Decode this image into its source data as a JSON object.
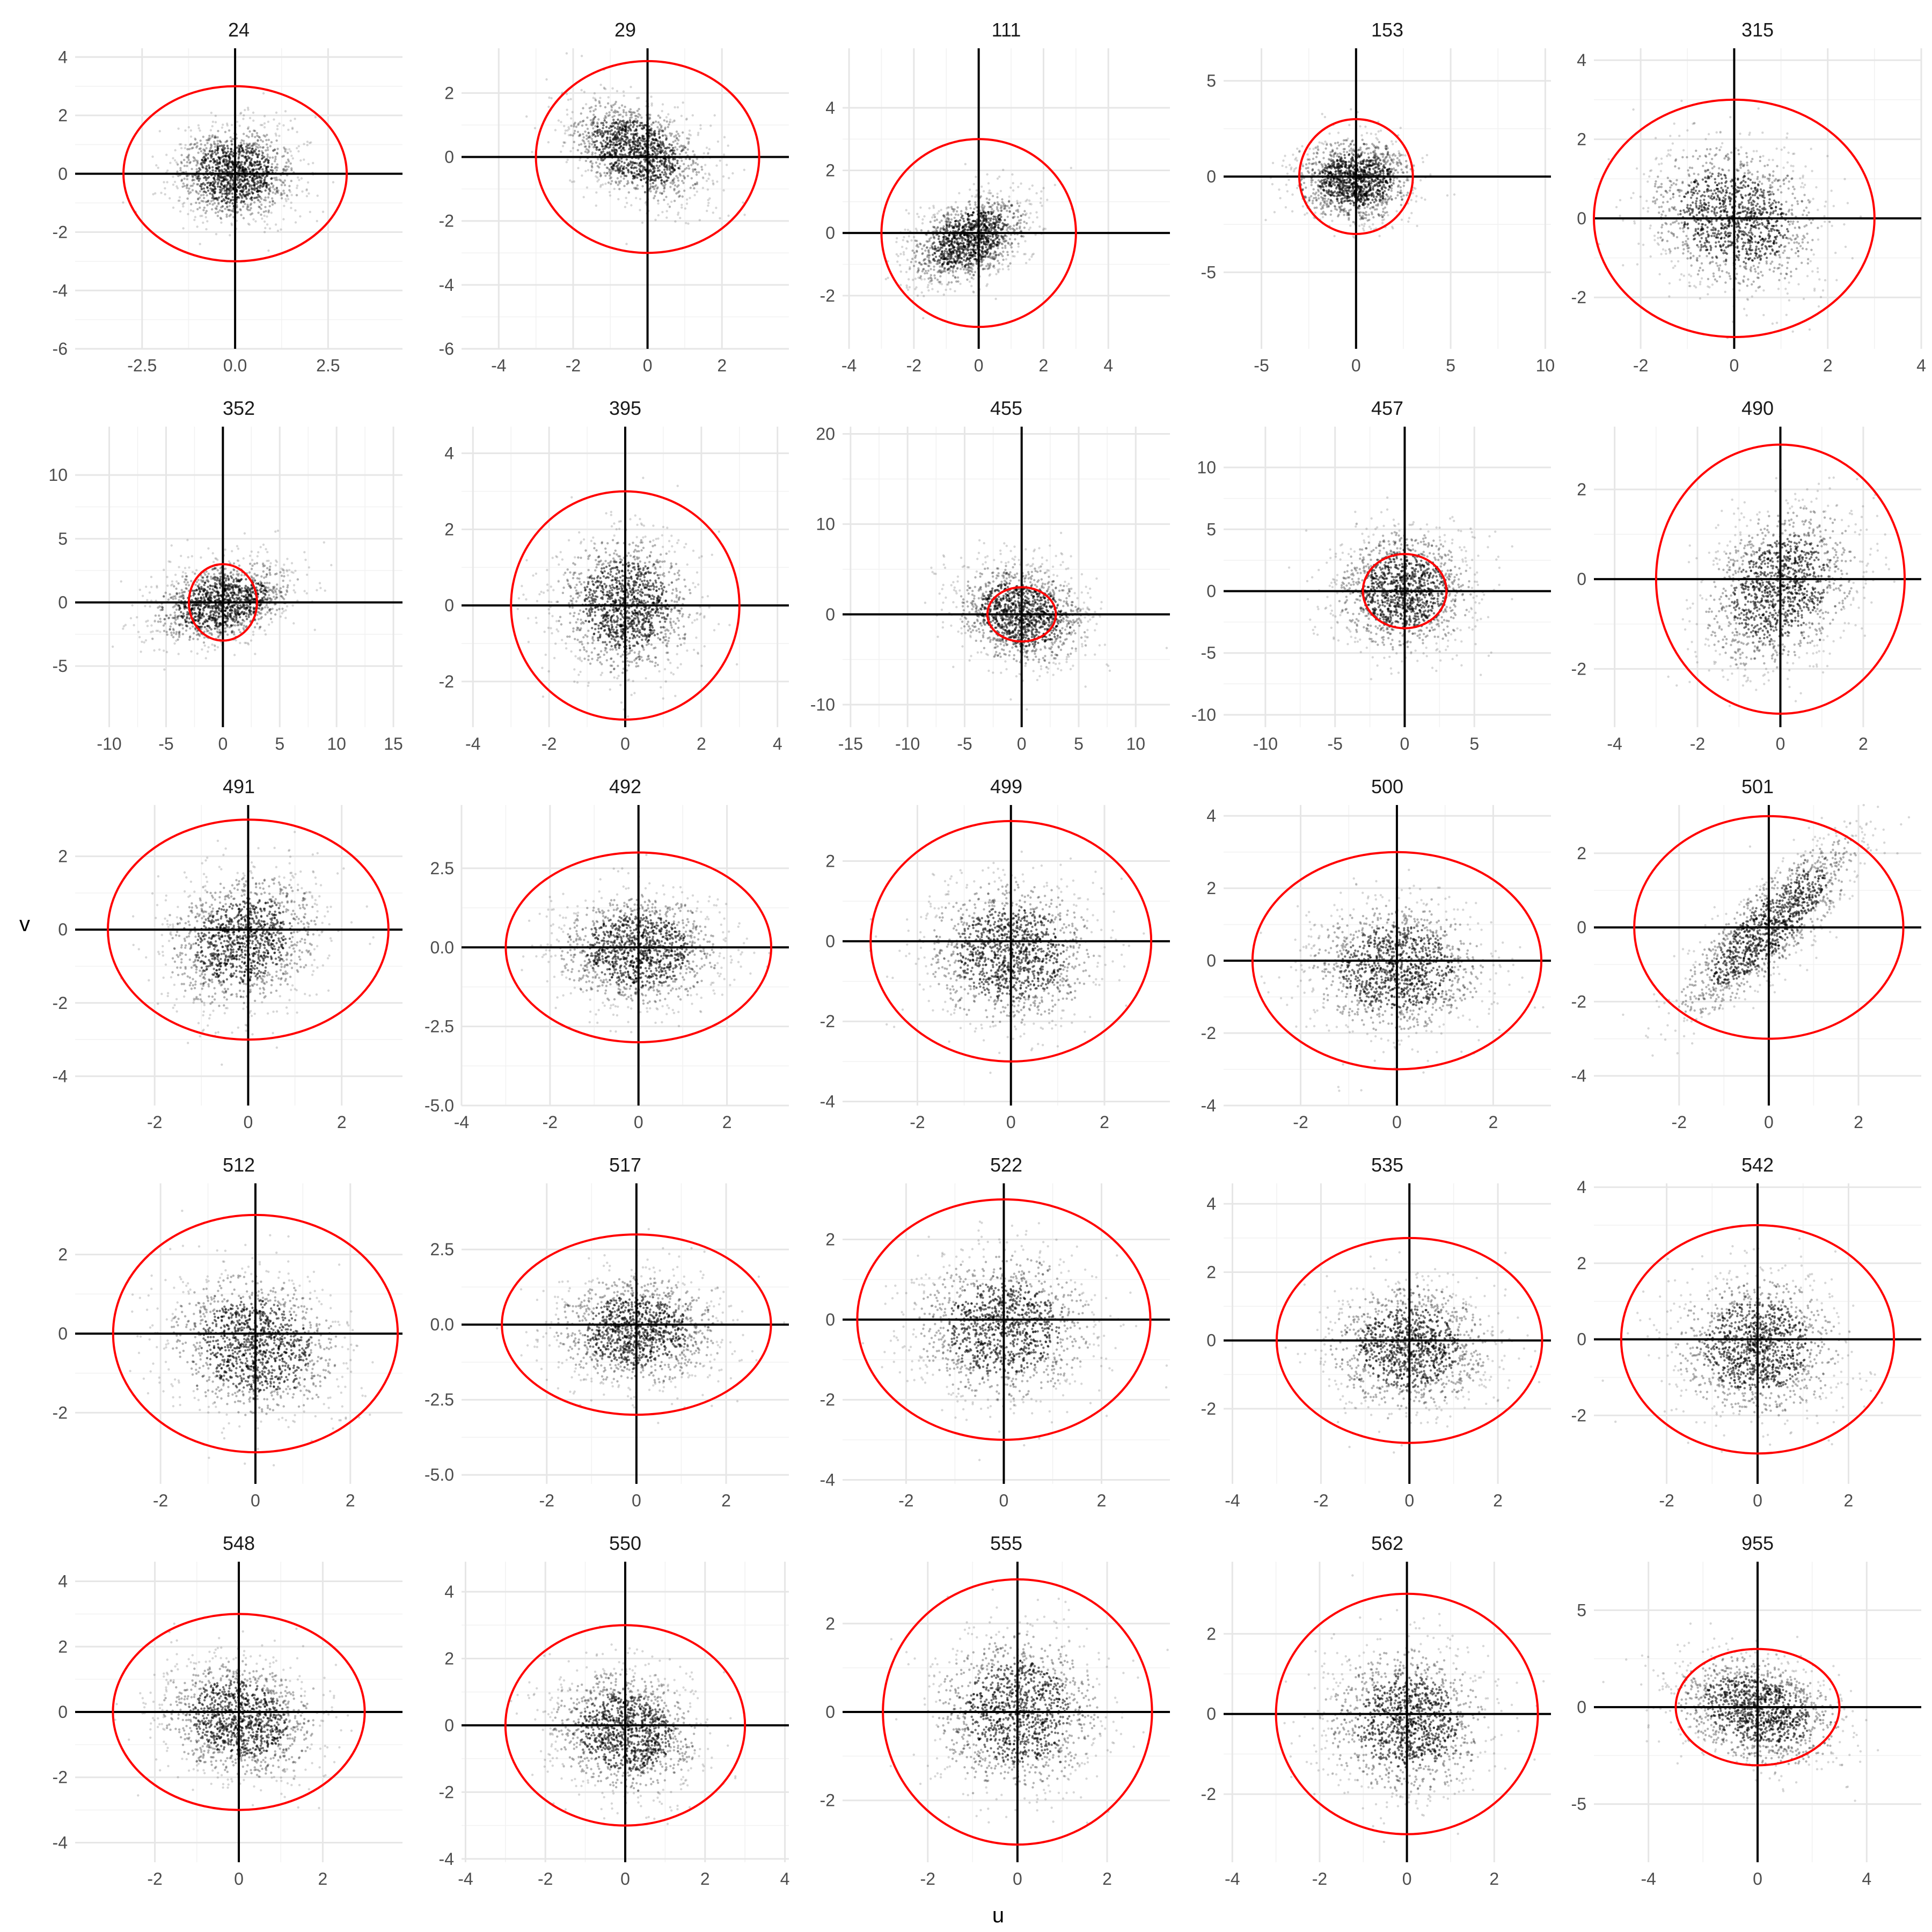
{
  "chart_data": {
    "type": "scatter",
    "xlabel": "u",
    "ylabel": "v",
    "grid": true,
    "reference_lines": {
      "x": 0,
      "y": 0
    },
    "reference_circle_radius": 3,
    "reference_circle_color": "#ff0000",
    "point_color": "#000000",
    "facets": [
      {
        "title": "24",
        "xlim": [
          -4.3,
          4.5
        ],
        "ylim": [
          -6.0,
          4.3
        ],
        "xticks": [
          "-2.5",
          "0.0",
          "2.5"
        ],
        "xtick_values": [
          -2.5,
          0,
          2.5
        ],
        "yticks": [
          "-6",
          "-4",
          "-2",
          "0",
          "2",
          "4"
        ],
        "ytick_values": [
          -6,
          -4,
          -2,
          0,
          2,
          4
        ],
        "cloud": {
          "mu": [
            0,
            0
          ],
          "sd": [
            0.8,
            0.8
          ],
          "rho": 0
        }
      },
      {
        "title": "29",
        "xlim": [
          -5.0,
          3.8
        ],
        "ylim": [
          -6.0,
          3.4
        ],
        "xticks": [
          "-4",
          "-2",
          "0",
          "2"
        ],
        "xtick_values": [
          -4,
          -2,
          0,
          2
        ],
        "yticks": [
          "-6",
          "-4",
          "-2",
          "0",
          "2"
        ],
        "ytick_values": [
          -6,
          -4,
          -2,
          0,
          2
        ],
        "cloud": {
          "mu": [
            -0.3,
            0.2
          ],
          "sd": [
            0.9,
            0.8
          ],
          "rho": -0.4
        }
      },
      {
        "title": "111",
        "xlim": [
          -4.2,
          5.9
        ],
        "ylim": [
          -3.7,
          5.9
        ],
        "xticks": [
          "-4",
          "-2",
          "0",
          "2",
          "4"
        ],
        "xtick_values": [
          -4,
          -2,
          0,
          2,
          4
        ],
        "yticks": [
          "-2",
          "0",
          "2",
          "4"
        ],
        "ytick_values": [
          -2,
          0,
          2,
          4
        ],
        "cloud": {
          "mu": [
            -0.3,
            -0.2
          ],
          "sd": [
            0.9,
            0.7
          ],
          "rho": 0.4
        }
      },
      {
        "title": "153",
        "xlim": [
          -7.0,
          10.3
        ],
        "ylim": [
          -9.0,
          6.7
        ],
        "xticks": [
          "-5",
          "0",
          "5",
          "10"
        ],
        "xtick_values": [
          -5,
          0,
          5,
          10
        ],
        "yticks": [
          "-5",
          "0",
          "5"
        ],
        "ytick_values": [
          -5,
          0,
          5
        ],
        "cloud": {
          "mu": [
            0,
            -0.2
          ],
          "sd": [
            1.5,
            1.1
          ],
          "rho": 0
        }
      },
      {
        "title": "315",
        "xlim": [
          -3.0,
          4.0
        ],
        "ylim": [
          -3.3,
          4.3
        ],
        "xticks": [
          "-2",
          "0",
          "2",
          "4"
        ],
        "xtick_values": [
          -2,
          0,
          2,
          4
        ],
        "yticks": [
          "-2",
          "0",
          "2",
          "4"
        ],
        "ytick_values": [
          -2,
          0,
          2,
          4
        ],
        "cloud": {
          "mu": [
            0,
            0
          ],
          "sd": [
            0.9,
            0.9
          ],
          "rho": -0.2
        }
      },
      {
        "title": "352",
        "xlim": [
          -13.0,
          15.8
        ],
        "ylim": [
          -9.8,
          13.8
        ],
        "xticks": [
          "-10",
          "-5",
          "0",
          "5",
          "10",
          "15"
        ],
        "xtick_values": [
          -10,
          -5,
          0,
          5,
          10,
          15
        ],
        "yticks": [
          "-5",
          "0",
          "5",
          "10"
        ],
        "ytick_values": [
          -5,
          0,
          5,
          10
        ],
        "cloud": {
          "mu": [
            0,
            0
          ],
          "sd": [
            3.0,
            1.6
          ],
          "rho": 0.3
        }
      },
      {
        "title": "395",
        "xlim": [
          -4.3,
          4.3
        ],
        "ylim": [
          -3.2,
          4.7
        ],
        "xticks": [
          "-4",
          "-2",
          "0",
          "2",
          "4"
        ],
        "xtick_values": [
          -4,
          -2,
          0,
          2,
          4
        ],
        "yticks": [
          "-2",
          "0",
          "2",
          "4"
        ],
        "ytick_values": [
          -2,
          0,
          2,
          4
        ],
        "cloud": {
          "mu": [
            0,
            0
          ],
          "sd": [
            0.9,
            0.9
          ],
          "rho": 0
        }
      },
      {
        "title": "455",
        "xlim": [
          -15.7,
          13.0
        ],
        "ylim": [
          -12.5,
          20.8
        ],
        "xticks": [
          "-15",
          "-10",
          "-5",
          "0",
          "5",
          "10"
        ],
        "xtick_values": [
          -15,
          -10,
          -5,
          0,
          5,
          10
        ],
        "yticks": [
          "-10",
          "0",
          "10",
          "20"
        ],
        "ytick_values": [
          -10,
          0,
          10,
          20
        ],
        "cloud": {
          "mu": [
            0,
            0
          ],
          "sd": [
            2.8,
            2.8
          ],
          "rho": -0.2
        }
      },
      {
        "title": "457",
        "xlim": [
          -13.0,
          10.5
        ],
        "ylim": [
          -11.0,
          13.3
        ],
        "xticks": [
          "-10",
          "-5",
          "0",
          "5"
        ],
        "xtick_values": [
          -10,
          -5,
          0,
          5
        ],
        "yticks": [
          "-10",
          "-5",
          "0",
          "5",
          "10"
        ],
        "ytick_values": [
          -10,
          -5,
          0,
          5,
          10
        ],
        "cloud": {
          "mu": [
            0,
            0
          ],
          "sd": [
            2.4,
            2.4
          ],
          "rho": 0
        }
      },
      {
        "title": "490",
        "xlim": [
          -4.5,
          3.4
        ],
        "ylim": [
          -3.3,
          3.4
        ],
        "xticks": [
          "-4",
          "-2",
          "0",
          "2"
        ],
        "xtick_values": [
          -4,
          -2,
          0,
          2
        ],
        "yticks": [
          "-2",
          "0",
          "2"
        ],
        "ytick_values": [
          -2,
          0,
          2
        ],
        "cloud": {
          "mu": [
            0,
            -0.2
          ],
          "sd": [
            0.9,
            0.9
          ],
          "rho": 0.3
        }
      },
      {
        "title": "491",
        "xlim": [
          -3.7,
          3.3
        ],
        "ylim": [
          -4.8,
          3.4
        ],
        "xticks": [
          "-2",
          "0",
          "2"
        ],
        "xtick_values": [
          -2,
          0,
          2
        ],
        "yticks": [
          "-4",
          "-2",
          "0",
          "2"
        ],
        "ytick_values": [
          -4,
          -2,
          0,
          2
        ],
        "cloud": {
          "mu": [
            -0.1,
            -0.3
          ],
          "sd": [
            0.8,
            0.9
          ],
          "rho": 0.2
        }
      },
      {
        "title": "492",
        "xlim": [
          -4.0,
          3.4
        ],
        "ylim": [
          -5.0,
          4.5
        ],
        "xticks": [
          "-4",
          "-2",
          "0",
          "2"
        ],
        "xtick_values": [
          -4,
          -2,
          0,
          2
        ],
        "yticks": [
          "-5.0",
          "-2.5",
          "0.0",
          "2.5"
        ],
        "ytick_values": [
          -5,
          -2.5,
          0,
          2.5
        ],
        "cloud": {
          "mu": [
            0,
            -0.1
          ],
          "sd": [
            0.9,
            0.9
          ],
          "rho": 0
        }
      },
      {
        "title": "499",
        "xlim": [
          -3.6,
          3.4
        ],
        "ylim": [
          -4.1,
          3.4
        ],
        "xticks": [
          "-2",
          "0",
          "2"
        ],
        "xtick_values": [
          -2,
          0,
          2
        ],
        "yticks": [
          "-4",
          "-2",
          "0",
          "2"
        ],
        "ytick_values": [
          -4,
          -2,
          0,
          2
        ],
        "cloud": {
          "mu": [
            0,
            -0.3
          ],
          "sd": [
            0.9,
            0.9
          ],
          "rho": 0
        }
      },
      {
        "title": "500",
        "xlim": [
          -3.6,
          3.2
        ],
        "ylim": [
          -4.0,
          4.3
        ],
        "xticks": [
          "-2",
          "0",
          "2"
        ],
        "xtick_values": [
          -2,
          0,
          2
        ],
        "yticks": [
          "-4",
          "-2",
          "0",
          "2",
          "4"
        ],
        "ytick_values": [
          -4,
          -2,
          0,
          2,
          4
        ],
        "cloud": {
          "mu": [
            0,
            -0.2
          ],
          "sd": [
            0.9,
            0.9
          ],
          "rho": 0
        }
      },
      {
        "title": "501",
        "xlim": [
          -3.9,
          3.4
        ],
        "ylim": [
          -4.8,
          3.3
        ],
        "xticks": [
          "-2",
          "0",
          "2"
        ],
        "xtick_values": [
          -2,
          0,
          2
        ],
        "yticks": [
          "-4",
          "-2",
          "0",
          "2"
        ],
        "ytick_values": [
          -4,
          -2,
          0,
          2
        ],
        "cloud": {
          "mu": [
            0,
            0
          ],
          "sd": [
            1.0,
            1.2
          ],
          "rho": 0.85
        }
      },
      {
        "title": "512",
        "xlim": [
          -3.8,
          3.1
        ],
        "ylim": [
          -3.8,
          3.8
        ],
        "xticks": [
          "-2",
          "0",
          "2"
        ],
        "xtick_values": [
          -2,
          0,
          2
        ],
        "yticks": [
          "-2",
          "0",
          "2"
        ],
        "ytick_values": [
          -2,
          0,
          2
        ],
        "cloud": {
          "mu": [
            0,
            -0.3
          ],
          "sd": [
            0.9,
            0.9
          ],
          "rho": -0.1
        }
      },
      {
        "title": "517",
        "xlim": [
          -3.9,
          3.4
        ],
        "ylim": [
          -5.3,
          4.7
        ],
        "xticks": [
          "-2",
          "0",
          "2"
        ],
        "xtick_values": [
          -2,
          0,
          2
        ],
        "yticks": [
          "-5.0",
          "-2.5",
          "0.0",
          "2.5"
        ],
        "ytick_values": [
          -5,
          -2.5,
          0,
          2.5
        ],
        "cloud": {
          "mu": [
            0,
            -0.2
          ],
          "sd": [
            0.9,
            0.9
          ],
          "rho": 0
        }
      },
      {
        "title": "522",
        "xlim": [
          -3.3,
          3.4
        ],
        "ylim": [
          -4.1,
          3.4
        ],
        "xticks": [
          "-2",
          "0",
          "2"
        ],
        "xtick_values": [
          -2,
          0,
          2
        ],
        "yticks": [
          "-4",
          "-2",
          "0",
          "2"
        ],
        "ytick_values": [
          -4,
          -2,
          0,
          2
        ],
        "cloud": {
          "mu": [
            0,
            -0.2
          ],
          "sd": [
            0.9,
            0.9
          ],
          "rho": 0
        }
      },
      {
        "title": "535",
        "xlim": [
          -4.2,
          3.2
        ],
        "ylim": [
          -4.2,
          4.6
        ],
        "xticks": [
          "-4",
          "-2",
          "0",
          "2"
        ],
        "xtick_values": [
          -4,
          -2,
          0,
          2
        ],
        "yticks": [
          "-2",
          "0",
          "2",
          "4"
        ],
        "ytick_values": [
          -2,
          0,
          2,
          4
        ],
        "cloud": {
          "mu": [
            0,
            -0.2
          ],
          "sd": [
            0.9,
            0.9
          ],
          "rho": 0
        }
      },
      {
        "title": "542",
        "xlim": [
          -3.6,
          3.6
        ],
        "ylim": [
          -3.8,
          4.1
        ],
        "xticks": [
          "-2",
          "0",
          "2"
        ],
        "xtick_values": [
          -2,
          0,
          2
        ],
        "yticks": [
          "-2",
          "0",
          "2",
          "4"
        ],
        "ytick_values": [
          -2,
          0,
          2,
          4
        ],
        "cloud": {
          "mu": [
            0,
            -0.2
          ],
          "sd": [
            0.9,
            0.9
          ],
          "rho": 0
        }
      },
      {
        "title": "548",
        "xlim": [
          -3.9,
          3.9
        ],
        "ylim": [
          -4.6,
          4.6
        ],
        "xticks": [
          "-2",
          "0",
          "2"
        ],
        "xtick_values": [
          -2,
          0,
          2
        ],
        "yticks": [
          "-4",
          "-2",
          "0",
          "2",
          "4"
        ],
        "ytick_values": [
          -4,
          -2,
          0,
          2,
          4
        ],
        "cloud": {
          "mu": [
            0,
            -0.2
          ],
          "sd": [
            0.9,
            0.9
          ],
          "rho": -0.15
        }
      },
      {
        "title": "550",
        "xlim": [
          -4.1,
          4.1
        ],
        "ylim": [
          -4.1,
          4.9
        ],
        "xticks": [
          "-4",
          "-2",
          "0",
          "2",
          "4"
        ],
        "xtick_values": [
          -4,
          -2,
          0,
          2,
          4
        ],
        "yticks": [
          "-4",
          "-2",
          "0",
          "2",
          "4"
        ],
        "ytick_values": [
          -4,
          -2,
          0,
          2,
          4
        ],
        "cloud": {
          "mu": [
            0,
            -0.2
          ],
          "sd": [
            0.9,
            0.9
          ],
          "rho": -0.1
        }
      },
      {
        "title": "555",
        "xlim": [
          -3.9,
          3.4
        ],
        "ylim": [
          -3.4,
          3.4
        ],
        "xticks": [
          "-2",
          "0",
          "2"
        ],
        "xtick_values": [
          -2,
          0,
          2
        ],
        "yticks": [
          "-2",
          "0",
          "2"
        ],
        "ytick_values": [
          -2,
          0,
          2
        ],
        "cloud": {
          "mu": [
            0,
            0
          ],
          "sd": [
            0.9,
            0.9
          ],
          "rho": 0
        }
      },
      {
        "title": "562",
        "xlim": [
          -4.2,
          3.3
        ],
        "ylim": [
          -3.7,
          3.8
        ],
        "xticks": [
          "-4",
          "-2",
          "0",
          "2"
        ],
        "xtick_values": [
          -4,
          -2,
          0,
          2
        ],
        "yticks": [
          "-2",
          "0",
          "2"
        ],
        "ytick_values": [
          -2,
          0,
          2
        ],
        "cloud": {
          "mu": [
            0,
            -0.2
          ],
          "sd": [
            0.9,
            0.9
          ],
          "rho": 0
        }
      },
      {
        "title": "955",
        "xlim": [
          -6.0,
          6.0
        ],
        "ylim": [
          -8.0,
          7.5
        ],
        "xticks": [
          "-4",
          "0",
          "4"
        ],
        "xtick_values": [
          -4,
          0,
          4
        ],
        "yticks": [
          "-5",
          "0",
          "5"
        ],
        "ytick_values": [
          -5,
          0,
          5
        ],
        "cloud": {
          "mu": [
            0,
            -0.2
          ],
          "sd": [
            1.5,
            1.4
          ],
          "rho": -0.3
        }
      }
    ]
  }
}
